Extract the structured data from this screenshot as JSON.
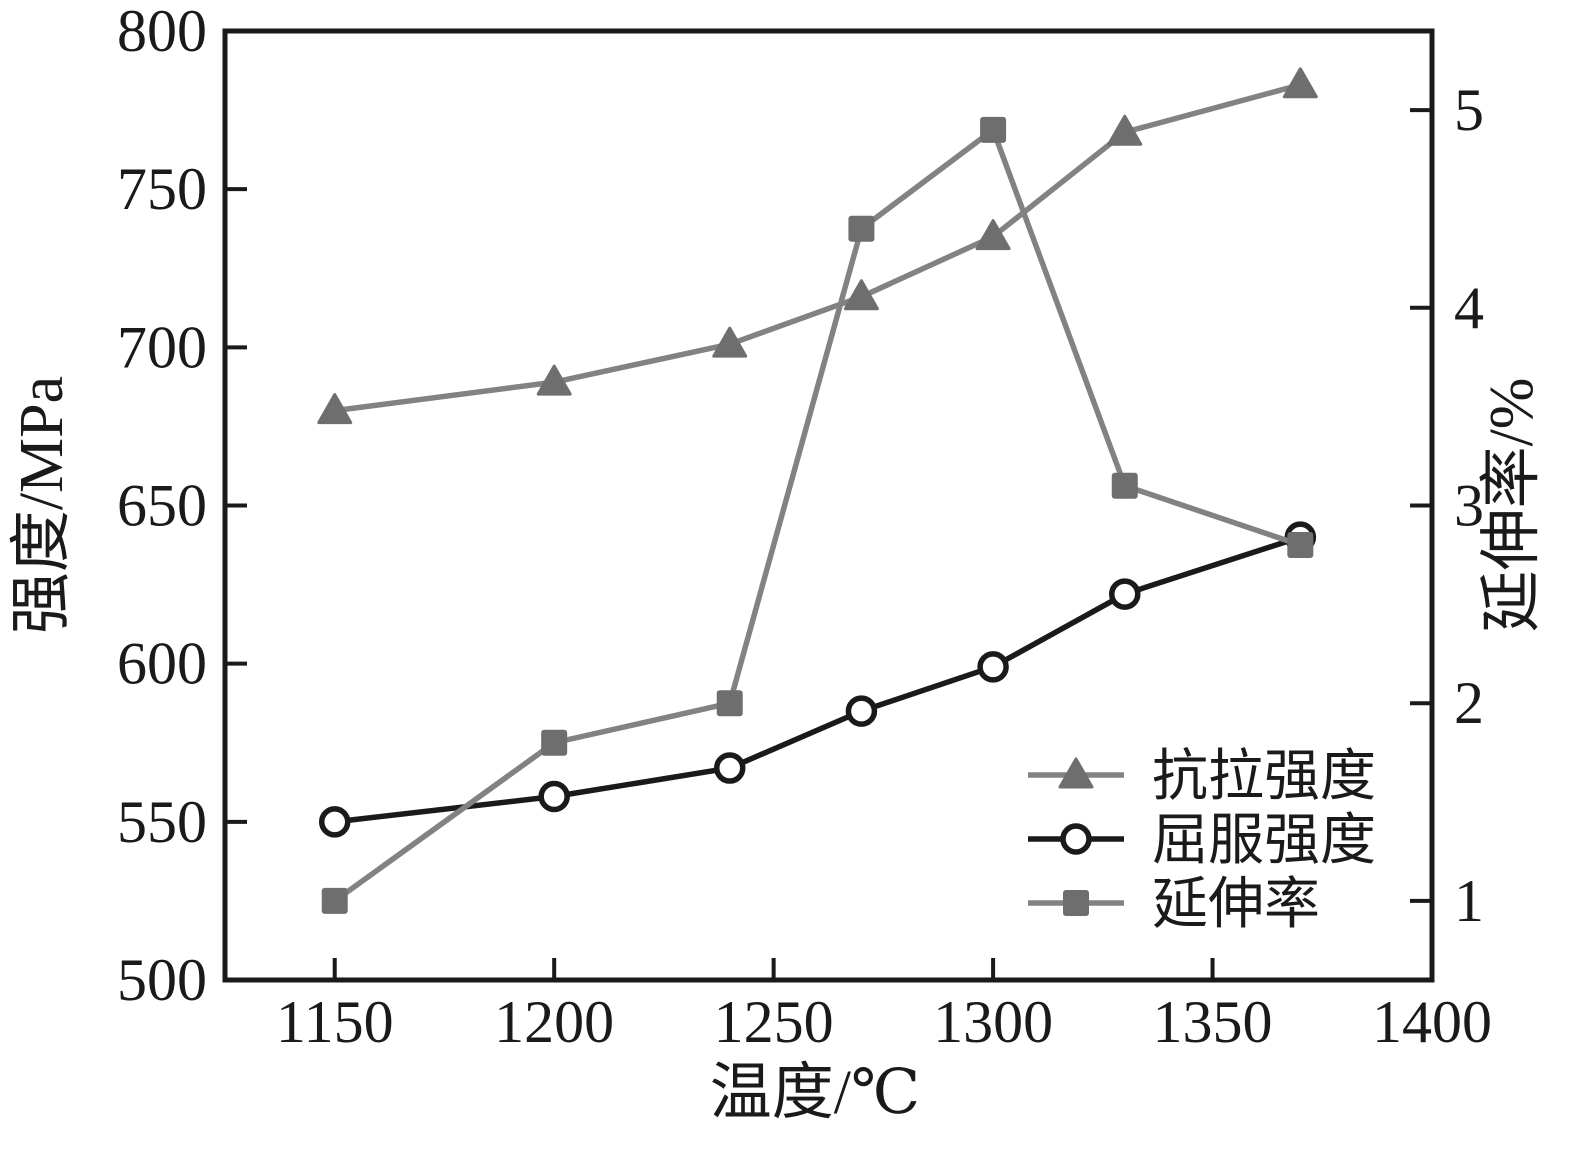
{
  "chart_data": {
    "type": "line",
    "title": "",
    "xlabel": "温度/℃",
    "ylabel_left": "强度/MPa",
    "ylabel_right": "延伸率/%",
    "x": [
      1150,
      1200,
      1240,
      1270,
      1300,
      1330,
      1370
    ],
    "series": [
      {
        "name": "抗拉强度",
        "axis": "left",
        "marker": "triangle",
        "line_color": "#828282",
        "marker_color": "#6e6e6e",
        "values": [
          680,
          689,
          701,
          716,
          735,
          768,
          783
        ]
      },
      {
        "name": "屈服强度",
        "axis": "left",
        "marker": "circle-open",
        "line_color": "#1a1a1a",
        "marker_color": "#ffffff",
        "values": [
          550,
          558,
          567,
          585,
          599,
          622,
          640
        ]
      },
      {
        "name": "延伸率",
        "axis": "right",
        "marker": "square",
        "line_color": "#828282",
        "marker_color": "#6e6e6e",
        "values": [
          1.0,
          1.8,
          2.0,
          4.4,
          4.9,
          3.1,
          2.8
        ]
      }
    ],
    "x_ticks": [
      1150,
      1200,
      1250,
      1300,
      1350,
      1400
    ],
    "y_ticks_left": [
      500,
      550,
      600,
      650,
      700,
      750,
      800
    ],
    "y_ticks_right": [
      1,
      2,
      3,
      4,
      5
    ],
    "xlim": [
      1125,
      1400
    ],
    "ylim_left": [
      500,
      800
    ],
    "ylim_right": [
      0.6,
      5.4
    ],
    "grid": false,
    "legend_position": "inside lower right"
  },
  "colors": {
    "axis": "#1a1a1a",
    "background": "#ffffff",
    "gray_series": "#828282",
    "gray_marker": "#6e6e6e",
    "black_series": "#1a1a1a"
  }
}
